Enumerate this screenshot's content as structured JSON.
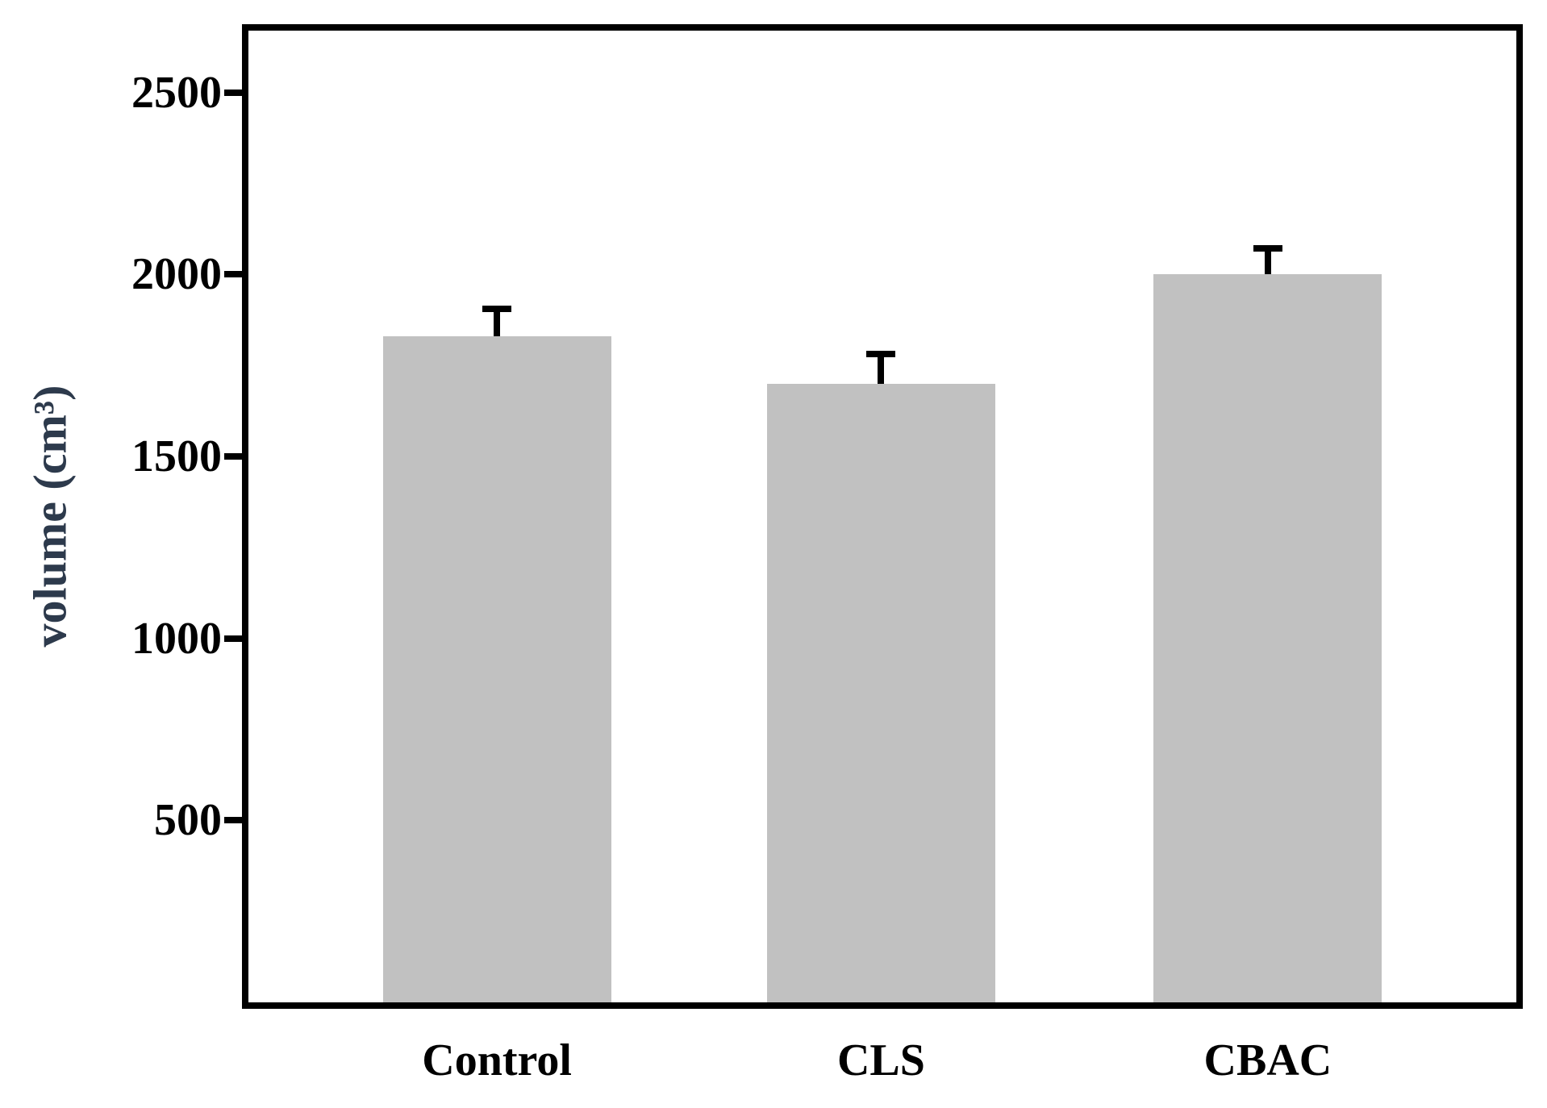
{
  "figure": {
    "background": "#ffffff"
  },
  "chart_data": {
    "type": "bar",
    "categories": [
      "Control",
      "CLS",
      "CBAC"
    ],
    "values": [
      1830,
      1700,
      2000
    ],
    "errors_plus": [
      85,
      90,
      80
    ],
    "title": "",
    "xlabel": "",
    "ylabel": "volume (cm³)",
    "yticks": [
      500,
      1000,
      1500,
      2000,
      2500
    ],
    "ylim": [
      0,
      2670
    ],
    "grid": false,
    "legend": "none",
    "bar_color": "#c1c1c1",
    "axis_color": "#000000",
    "error_bar_color": "#000000",
    "ylabel_color": "#2d3a4c",
    "tick_label_color": "#000000",
    "category_label_color": "#000000"
  }
}
